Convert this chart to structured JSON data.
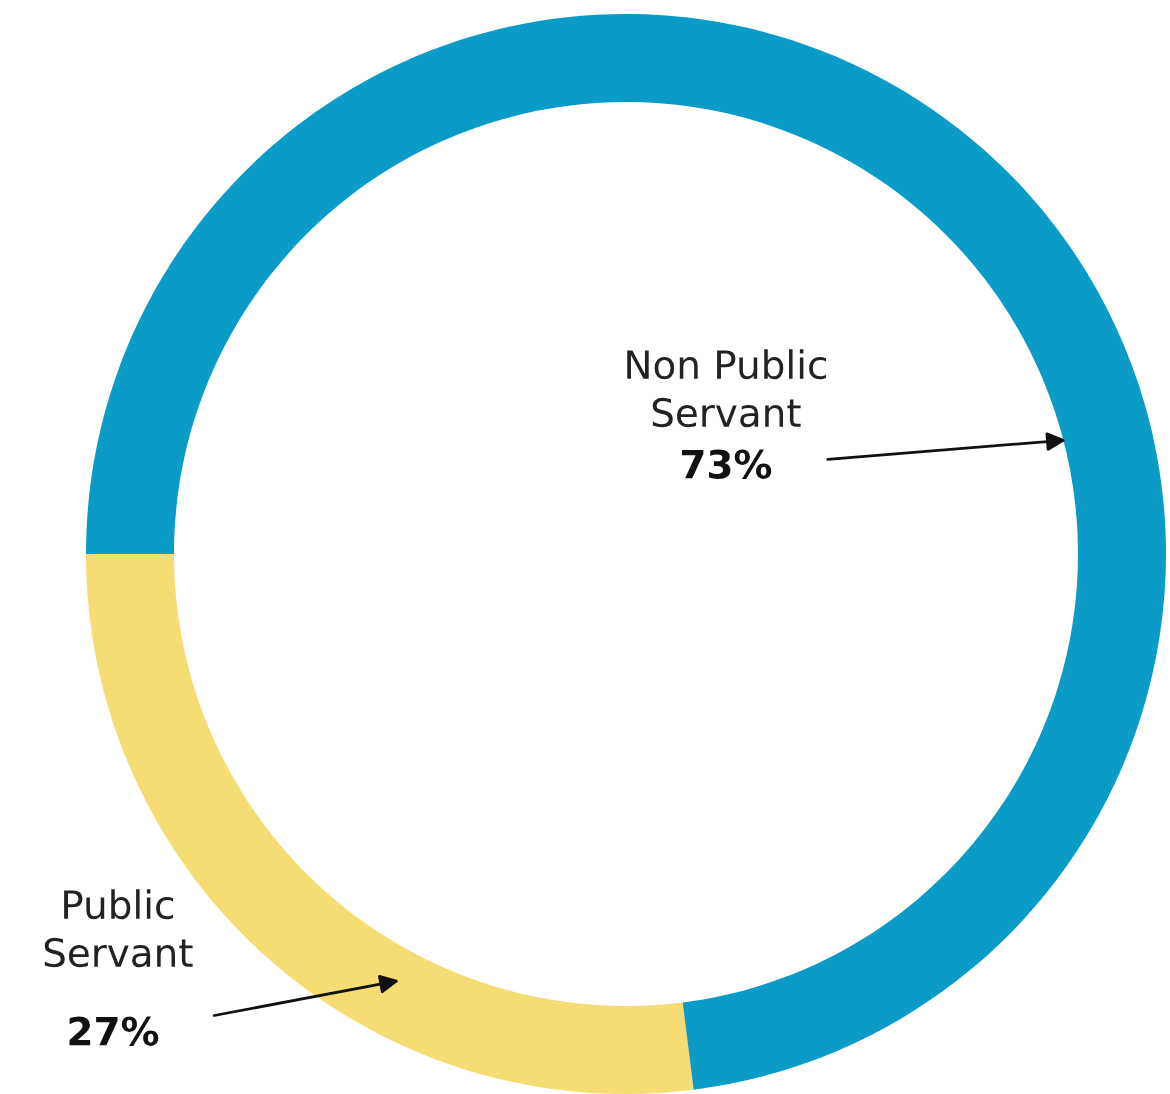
{
  "chart_data": {
    "type": "donut",
    "categories": [
      "Public Servant",
      "Non Public Servant"
    ],
    "values": [
      27,
      73
    ],
    "colors": [
      "#f5dc73",
      "#0a9bc7"
    ],
    "value_labels": [
      "27%",
      "73%"
    ],
    "legend": false
  }
}
